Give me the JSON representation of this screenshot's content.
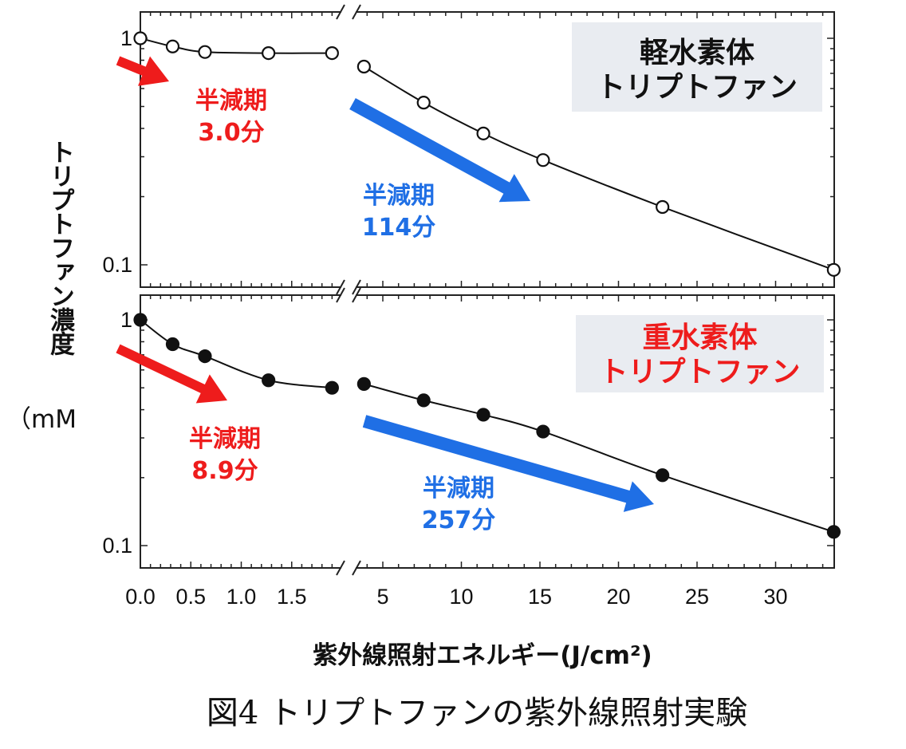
{
  "chart_data": [
    {
      "type": "scatter",
      "panel": "top",
      "title": "軽水素体トリプトファン",
      "title_lines": [
        "軽水素体",
        "トリプトファン"
      ],
      "title_color": "#111111",
      "marker": "open-circle",
      "x": [
        0,
        0.32,
        0.64,
        1.27,
        1.9,
        3.8,
        7.6,
        11.4,
        15.2,
        22.8,
        33.7
      ],
      "y": [
        1.0,
        0.92,
        0.87,
        0.86,
        0.86,
        0.75,
        0.52,
        0.38,
        0.29,
        0.18,
        0.095
      ],
      "yscale": "log",
      "ylim": [
        0.08,
        1.15
      ],
      "yticks": [
        "1",
        "0.1"
      ],
      "annotations": [
        {
          "lines": [
            "半減期",
            "3.0分"
          ],
          "color": "#ee1c1c"
        },
        {
          "lines": [
            "半減期",
            "114分"
          ],
          "color": "#1f6fe5"
        }
      ]
    },
    {
      "type": "scatter",
      "panel": "bottom",
      "title": "重水素体トリプトファン",
      "title_lines": [
        "重水素体",
        "トリプトファン"
      ],
      "title_color": "#ee1c1c",
      "marker": "filled-circle",
      "x": [
        0,
        0.32,
        0.64,
        1.27,
        1.9,
        3.8,
        7.6,
        11.4,
        15.2,
        22.8,
        33.7
      ],
      "y": [
        1.0,
        0.78,
        0.69,
        0.54,
        0.5,
        0.52,
        0.44,
        0.38,
        0.32,
        0.205,
        0.115
      ],
      "yscale": "log",
      "ylim": [
        0.08,
        1.15
      ],
      "yticks": [
        "1",
        "0.1"
      ],
      "annotations": [
        {
          "lines": [
            "半減期",
            "8.9分"
          ],
          "color": "#ee1c1c"
        },
        {
          "lines": [
            "半減期",
            "257分"
          ],
          "color": "#1f6fe5"
        }
      ]
    }
  ],
  "axes": {
    "xlabel": "紫外線照射エネルギー(J/cm²)",
    "ylabel_vertical": "トリプトファン濃度",
    "ylabel_unit": "（mM",
    "x_break": true,
    "x_left_range": [
      0,
      2.0
    ],
    "x_right_range": [
      0.9,
      33.7
    ],
    "xticks_left": [
      "0.0",
      "0.5",
      "1.0",
      "1.5"
    ],
    "xticks_right": [
      "5",
      "10",
      "15",
      "20",
      "25",
      "30"
    ]
  },
  "caption": "図4 トリプトファンの紫外線照射実験",
  "colors": {
    "red": "#ee1c1c",
    "blue": "#1f6fe5",
    "box_bg": "#e9ecf1"
  }
}
